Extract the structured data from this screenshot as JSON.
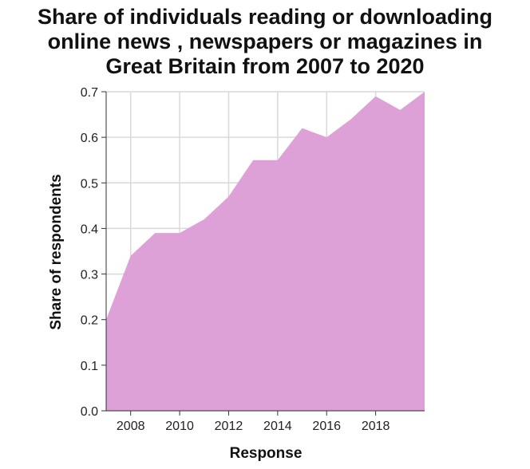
{
  "chart_data": {
    "type": "area",
    "title": "Share of individuals reading or downloading online news , newspapers or magazines in Great Britain from 2007 to 2020",
    "title_lines": [
      "Share of individuals reading or downloading",
      "online news , newspapers or magazines in",
      "Great Britain from 2007 to 2020"
    ],
    "xlabel": "Response",
    "ylabel": "Share of respondents",
    "x": [
      2007,
      2008,
      2009,
      2010,
      2011,
      2012,
      2013,
      2014,
      2015,
      2016,
      2017,
      2018,
      2019,
      2020
    ],
    "values": [
      0.2,
      0.34,
      0.39,
      0.39,
      0.42,
      0.47,
      0.55,
      0.55,
      0.62,
      0.6,
      0.64,
      0.69,
      0.66,
      0.7
    ],
    "xlim": [
      2007,
      2020
    ],
    "ylim": [
      0,
      0.7
    ],
    "x_ticks": [
      2008,
      2010,
      2012,
      2014,
      2016,
      2018
    ],
    "y_ticks": [
      "0.0",
      "0.1",
      "0.2",
      "0.3",
      "0.4",
      "0.5",
      "0.6",
      "0.7"
    ],
    "grid": true,
    "fill_color": "#dda0d7",
    "grid_color": "#d9d9d9",
    "axis_color": "#333333"
  }
}
